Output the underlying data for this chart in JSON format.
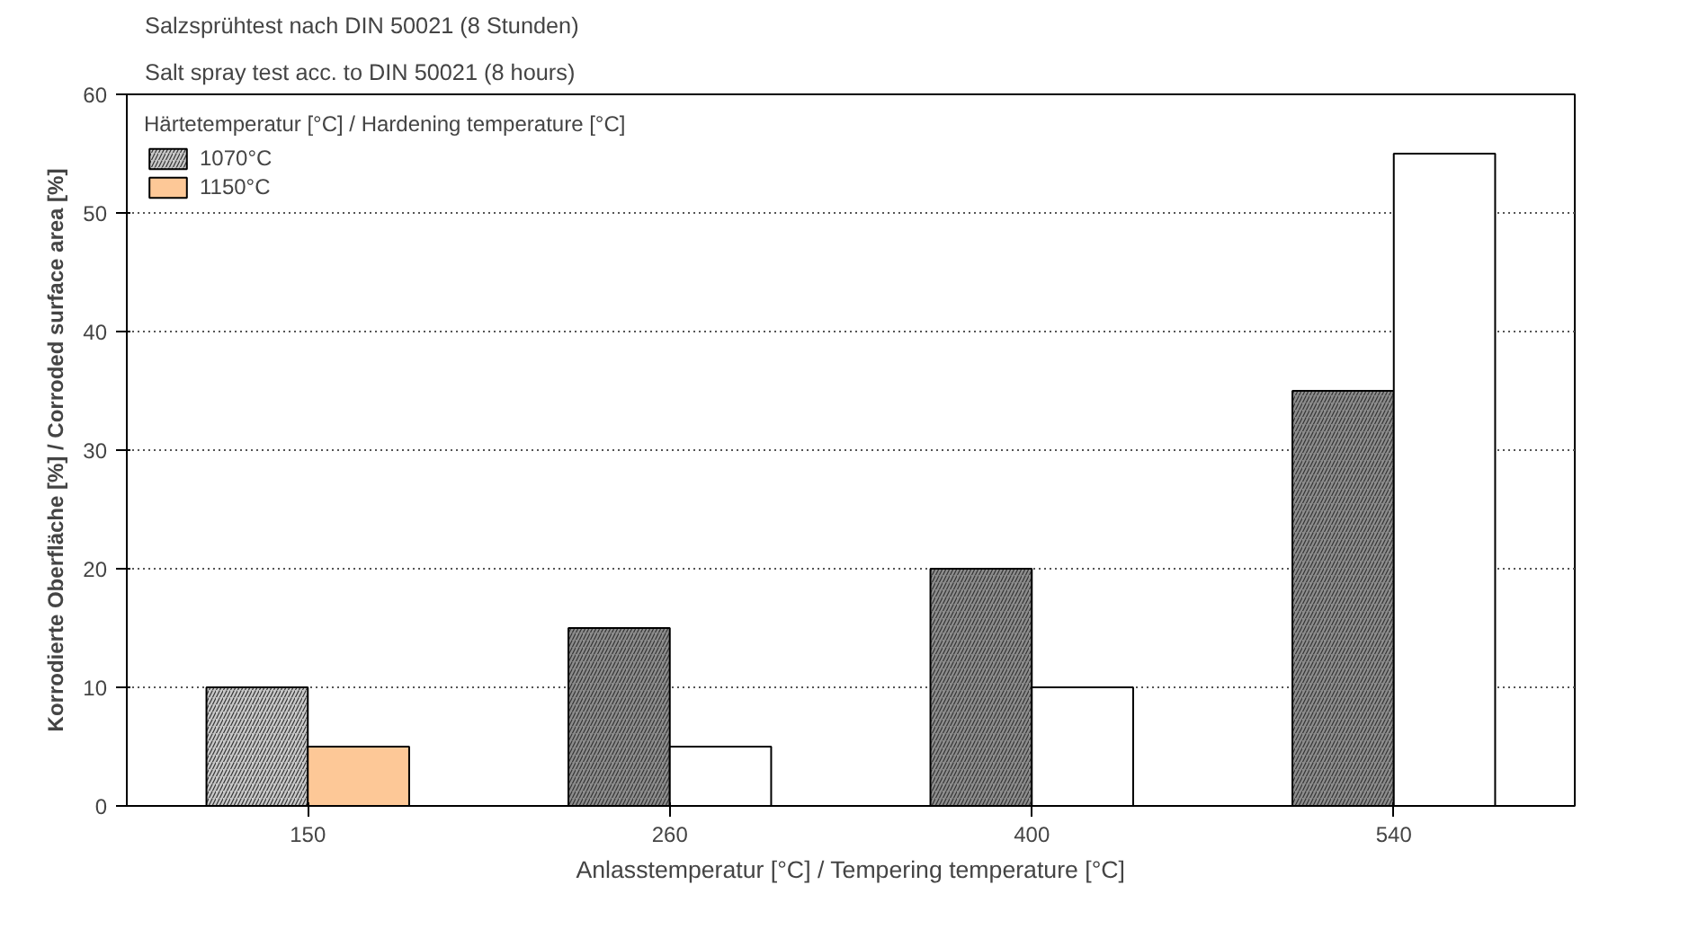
{
  "chart_data": {
    "type": "bar",
    "title": "Salzsprühtest nach DIN 50021 (8 Stunden)",
    "subtitle": "Salt spray test acc. to DIN 50021 (8 hours)",
    "xlabel": "Anlasstemperatur [°C] / Tempering temperature [°C]",
    "ylabel": "Korrodierte Oberfläche [%] / Corroded surface area [%]",
    "legend_title": "Härtetemperatur [°C] / Hardening temperature [°C]",
    "categories": [
      "150",
      "260",
      "400",
      "540"
    ],
    "series": [
      {
        "name": "1070°C",
        "colors": [
          "#c8c8c8",
          "#8c8c8c",
          "#8c8c8c",
          "#8c8c8c"
        ],
        "values": [
          10,
          15,
          20,
          35
        ]
      },
      {
        "name": "1150°C",
        "colors": [
          "#fdc897",
          "#ffffff",
          "#ffffff",
          "#ffffff"
        ],
        "values": [
          5,
          5,
          10,
          55
        ]
      }
    ],
    "ylim": [
      0,
      60
    ],
    "yticks": [
      0,
      10,
      20,
      30,
      40,
      50,
      60
    ],
    "grid": "y",
    "legend": "top left"
  }
}
